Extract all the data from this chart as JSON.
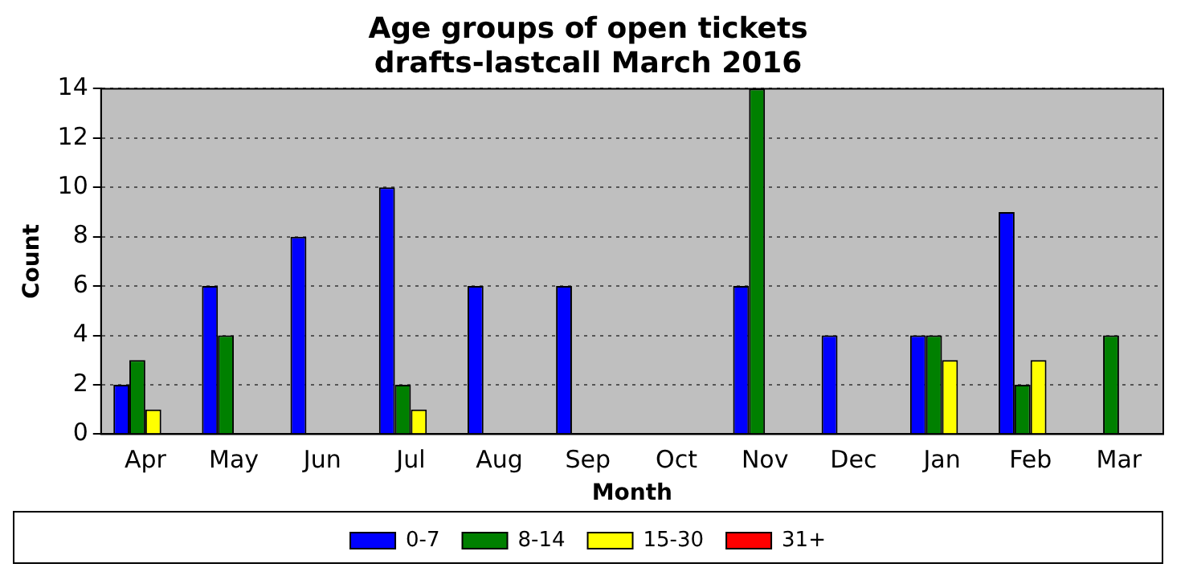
{
  "chart_data": {
    "type": "bar",
    "title": "Age groups of open tickets\ndrafts-lastcall March 2016",
    "xlabel": "Month",
    "ylabel": "Count",
    "categories": [
      "Apr",
      "May",
      "Jun",
      "Jul",
      "Aug",
      "Sep",
      "Oct",
      "Nov",
      "Dec",
      "Jan",
      "Feb",
      "Mar"
    ],
    "series": [
      {
        "name": "0-7",
        "color": "#0000ff",
        "values": [
          2,
          6,
          8,
          10,
          6,
          6,
          0,
          6,
          4,
          4,
          9,
          0
        ]
      },
      {
        "name": "8-14",
        "color": "#008000",
        "values": [
          3,
          4,
          0,
          2,
          0,
          0,
          0,
          14,
          0,
          4,
          2,
          4
        ]
      },
      {
        "name": "15-30",
        "color": "#ffff00",
        "values": [
          1,
          0,
          0,
          1,
          0,
          0,
          0,
          0,
          0,
          3,
          3,
          0
        ]
      },
      {
        "name": "31+",
        "color": "#ff0000",
        "values": [
          0,
          0,
          0,
          0,
          0,
          0,
          0,
          0,
          0,
          0,
          0,
          0
        ]
      }
    ],
    "ylim": [
      0,
      14
    ],
    "yticks": [
      0,
      2,
      4,
      6,
      8,
      10,
      12,
      14
    ],
    "grid": "y",
    "legend": "bottom"
  }
}
